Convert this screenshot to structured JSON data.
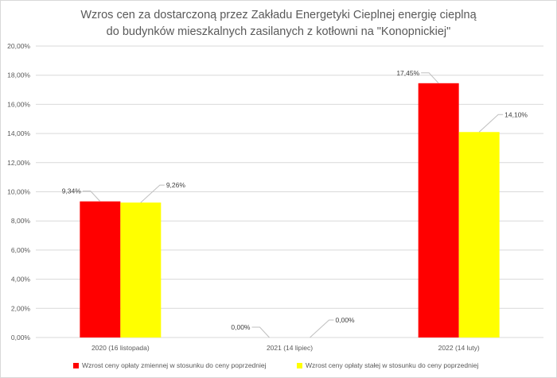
{
  "chart_data": {
    "type": "bar",
    "title_lines": [
      "Wzros cen za dostarczoną przez Zakładu Energetyki Cieplnej energię cieplną",
      "do budynków mieszkalnych zasilanych z kotłowni na \"Konopnickiej\""
    ],
    "categories": [
      "2020 (16 listopada)",
      "2021 (14 lipiec)",
      "2022 (14 luty)"
    ],
    "series": [
      {
        "name": "Wzrost ceny opłaty zmiennej w stosunku do ceny poprzedniej",
        "values": [
          9.34,
          0.0,
          17.45
        ],
        "labels": [
          "9,34%",
          "0,00%",
          "17,45%"
        ],
        "color": "#ff0000"
      },
      {
        "name": "Wzrost ceny opłaty stałej w stosunku do ceny poprzedniej",
        "values": [
          9.26,
          0.0,
          14.1
        ],
        "labels": [
          "9,26%",
          "0,00%",
          "14,10%"
        ],
        "color": "#ffff00"
      }
    ],
    "y_ticks": [
      "0,00%",
      "2,00%",
      "4,00%",
      "6,00%",
      "8,00%",
      "10,00%",
      "12,00%",
      "14,00%",
      "16,00%",
      "18,00%",
      "20,00%"
    ],
    "ylim": [
      0,
      20
    ],
    "grid": true,
    "legend_position": "bottom",
    "axis_color": "#d9d9d9",
    "text_color": "#595959"
  }
}
